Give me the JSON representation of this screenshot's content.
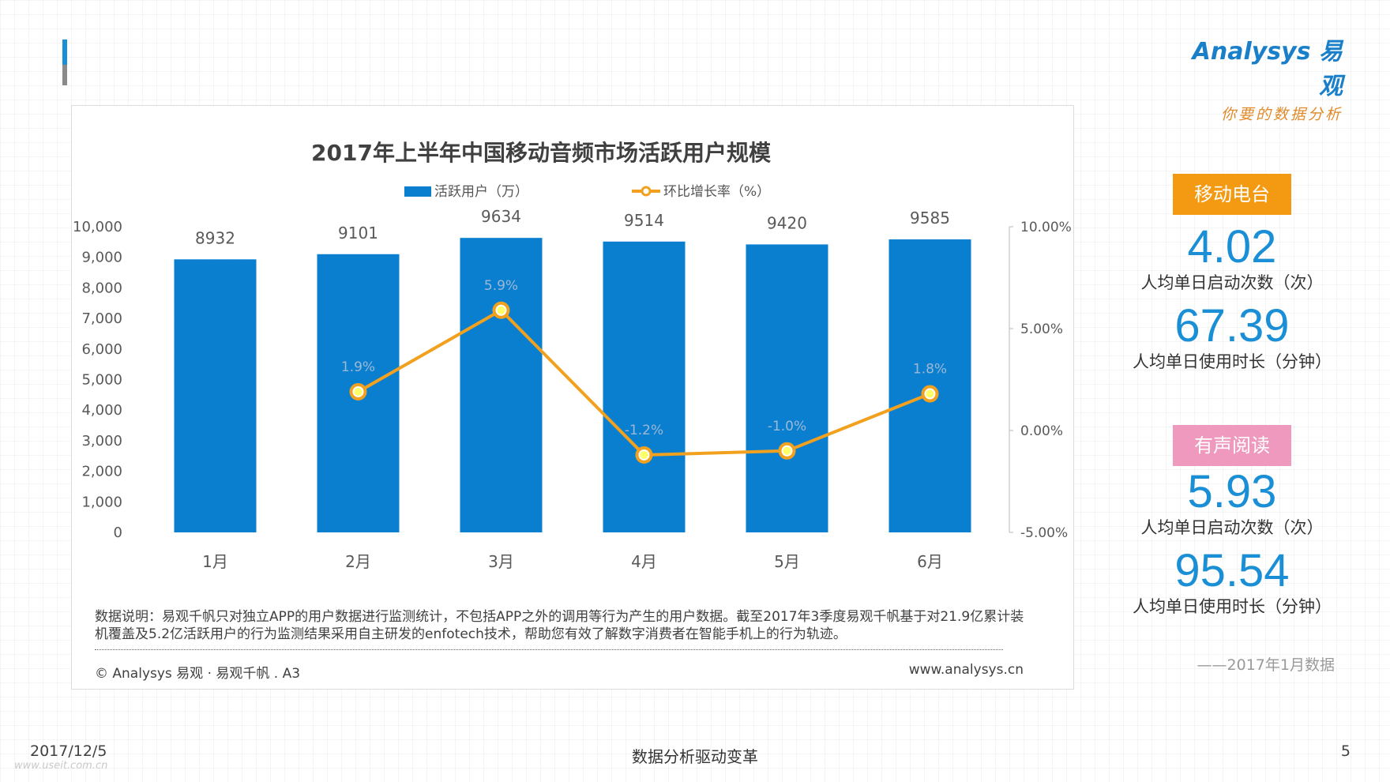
{
  "logo": {
    "brand": "Analysys 易观",
    "tagline": "你要的数据分析"
  },
  "chart_data": {
    "type": "bar",
    "title": "2017年上半年中国移动音频市场活跃用户规模",
    "categories": [
      "1月",
      "2月",
      "3月",
      "4月",
      "5月",
      "6月"
    ],
    "series": [
      {
        "name": "活跃用户（万）",
        "type": "bar",
        "axis": "left",
        "color": "#0a7fd0",
        "values": [
          8932,
          9101,
          9634,
          9514,
          9420,
          9585
        ],
        "labels": [
          "8932",
          "9101",
          "9634",
          "9514",
          "9420",
          "9585"
        ]
      },
      {
        "name": "环比增长率（%）",
        "type": "line",
        "axis": "right",
        "color": "#f2a11f",
        "values": [
          null,
          1.9,
          5.9,
          -1.2,
          -1.0,
          1.8
        ],
        "labels": [
          "",
          "1.9%",
          "5.9%",
          "-1.2%",
          "-1.0%",
          "1.8%"
        ]
      }
    ],
    "y_left": {
      "min": 0,
      "max": 10000,
      "ticks": [
        "0",
        "1,000",
        "2,000",
        "3,000",
        "4,000",
        "5,000",
        "6,000",
        "7,000",
        "8,000",
        "9,000",
        "10,000"
      ]
    },
    "y_right": {
      "min": -5,
      "max": 10,
      "ticks": [
        "-5.00%",
        "0.00%",
        "5.00%",
        "10.00%"
      ]
    },
    "grid": false,
    "legend": "top"
  },
  "notes": {
    "text": "数据说明：易观千帆只对独立APP的用户数据进行监测统计，不包括APP之外的调用等行为产生的用户数据。截至2017年3季度易观千帆基于对21.9亿累计装机覆盖及5.2亿活跃用户的行为监测结果采用自主研发的enfotech技术，帮助您有效了解数字消费者在智能手机上的行为轨迹。",
    "copyright": "© Analysys 易观 · 易观千帆 . A3",
    "website": "www.analysys.cn"
  },
  "stats": {
    "radio": {
      "label": "移动电台",
      "color": "#f39a12",
      "launches_value": "4.02",
      "launches_label": "人均单日启动次数（次）",
      "duration_value": "67.39",
      "duration_label": "人均单日使用时长（分钟）"
    },
    "audiobook": {
      "label": "有声阅读",
      "color": "#ee99bd",
      "launches_value": "5.93",
      "launches_label": "人均单日启动次数（次）",
      "duration_value": "95.54",
      "duration_label": "人均单日使用时长（分钟）"
    },
    "data_note": "——2017年1月数据"
  },
  "footer": {
    "date": "2017/12/5",
    "slogan": "数据分析驱动变革",
    "page": "5",
    "watermark": "www.useit.com.cn"
  }
}
